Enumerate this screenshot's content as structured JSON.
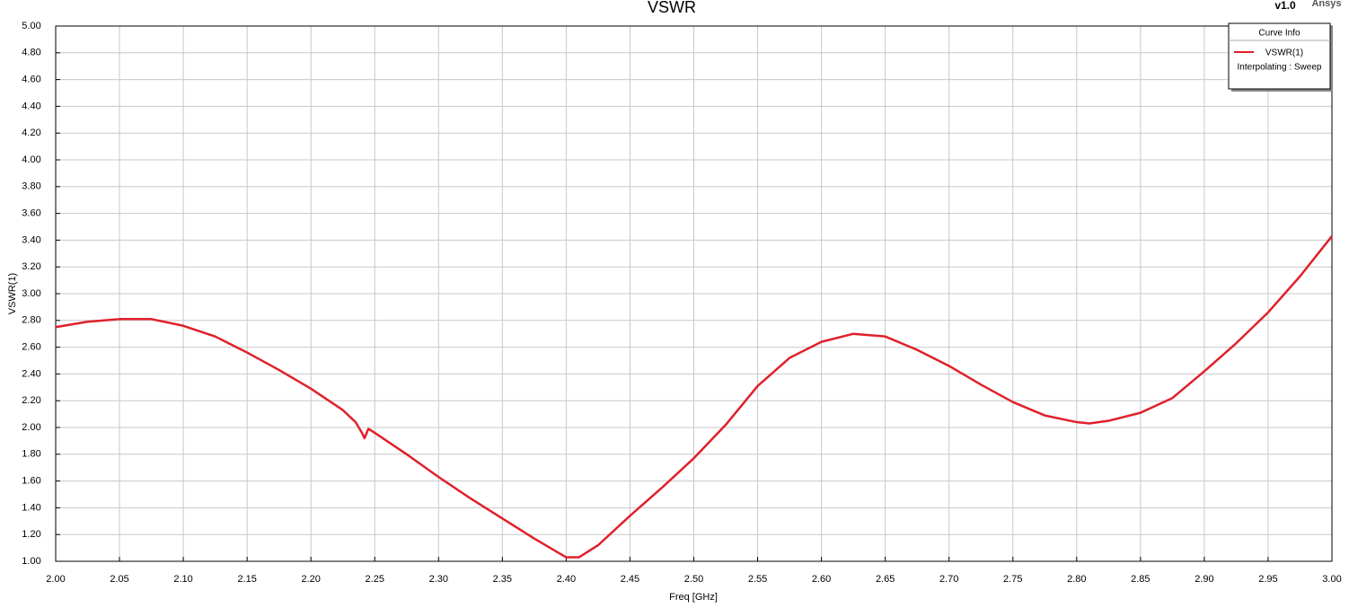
{
  "chart_data": {
    "type": "line",
    "title": "VSWR",
    "version": "v1.0",
    "brand": "Ansys",
    "x_label": "Freq [GHz]",
    "y_label": "VSWR(1)",
    "legend_title": "Curve Info",
    "legend_note": "Interpolating : Sweep",
    "legend": "top-right",
    "grid": true,
    "x": [
      2.0,
      2.025,
      2.05,
      2.075,
      2.1,
      2.125,
      2.15,
      2.175,
      2.2,
      2.225,
      2.235,
      2.24,
      2.242,
      2.245,
      2.25,
      2.275,
      2.3,
      2.325,
      2.35,
      2.375,
      2.4,
      2.41,
      2.425,
      2.45,
      2.475,
      2.5,
      2.525,
      2.55,
      2.575,
      2.6,
      2.625,
      2.65,
      2.675,
      2.7,
      2.725,
      2.75,
      2.775,
      2.8,
      2.81,
      2.825,
      2.85,
      2.875,
      2.9,
      2.925,
      2.95,
      2.975,
      3.0
    ],
    "series": [
      {
        "name": "VSWR(1)",
        "color": "#e0202a",
        "values": [
          2.75,
          2.79,
          2.81,
          2.81,
          2.76,
          2.68,
          2.56,
          2.43,
          2.29,
          2.13,
          2.04,
          1.96,
          1.92,
          1.99,
          1.96,
          1.8,
          1.63,
          1.47,
          1.32,
          1.17,
          1.03,
          1.03,
          1.12,
          1.34,
          1.55,
          1.77,
          2.02,
          2.31,
          2.52,
          2.64,
          2.7,
          2.68,
          2.58,
          2.46,
          2.32,
          2.19,
          2.09,
          2.04,
          2.03,
          2.05,
          2.11,
          2.22,
          2.42,
          2.63,
          2.86,
          3.13,
          3.43
        ]
      }
    ],
    "xlim": [
      2.0,
      3.0
    ],
    "xticks": [
      {
        "value": 2.0,
        "label": "2.00"
      },
      {
        "value": 2.05,
        "label": "2.05"
      },
      {
        "value": 2.1,
        "label": "2.10"
      },
      {
        "value": 2.15,
        "label": "2.15"
      },
      {
        "value": 2.2,
        "label": "2.20"
      },
      {
        "value": 2.25,
        "label": "2.25"
      },
      {
        "value": 2.3,
        "label": "2.30"
      },
      {
        "value": 2.35,
        "label": "2.35"
      },
      {
        "value": 2.4,
        "label": "2.40"
      },
      {
        "value": 2.45,
        "label": "2.45"
      },
      {
        "value": 2.5,
        "label": "2.50"
      },
      {
        "value": 2.55,
        "label": "2.55"
      },
      {
        "value": 2.6,
        "label": "2.60"
      },
      {
        "value": 2.65,
        "label": "2.65"
      },
      {
        "value": 2.7,
        "label": "2.70"
      },
      {
        "value": 2.75,
        "label": "2.75"
      },
      {
        "value": 2.8,
        "label": "2.80"
      },
      {
        "value": 2.85,
        "label": "2.85"
      },
      {
        "value": 2.9,
        "label": "2.90"
      },
      {
        "value": 2.95,
        "label": "2.95"
      },
      {
        "value": 3.0,
        "label": "3.00"
      }
    ],
    "ylim": [
      1.0,
      5.0
    ],
    "yticks": [
      {
        "value": 1.0,
        "label": "1.00"
      },
      {
        "value": 1.2,
        "label": "1.20"
      },
      {
        "value": 1.4,
        "label": "1.40"
      },
      {
        "value": 1.6,
        "label": "1.60"
      },
      {
        "value": 1.8,
        "label": "1.80"
      },
      {
        "value": 2.0,
        "label": "2.00"
      },
      {
        "value": 2.2,
        "label": "2.20"
      },
      {
        "value": 2.4,
        "label": "2.40"
      },
      {
        "value": 2.6,
        "label": "2.60"
      },
      {
        "value": 2.8,
        "label": "2.80"
      },
      {
        "value": 3.0,
        "label": "3.00"
      },
      {
        "value": 3.2,
        "label": "3.20"
      },
      {
        "value": 3.4,
        "label": "3.40"
      },
      {
        "value": 3.6,
        "label": "3.60"
      },
      {
        "value": 3.8,
        "label": "3.80"
      },
      {
        "value": 4.0,
        "label": "4.00"
      },
      {
        "value": 4.2,
        "label": "4.20"
      },
      {
        "value": 4.4,
        "label": "4.40"
      },
      {
        "value": 4.6,
        "label": "4.60"
      },
      {
        "value": 4.8,
        "label": "4.80"
      },
      {
        "value": 5.0,
        "label": "5.00"
      }
    ]
  }
}
